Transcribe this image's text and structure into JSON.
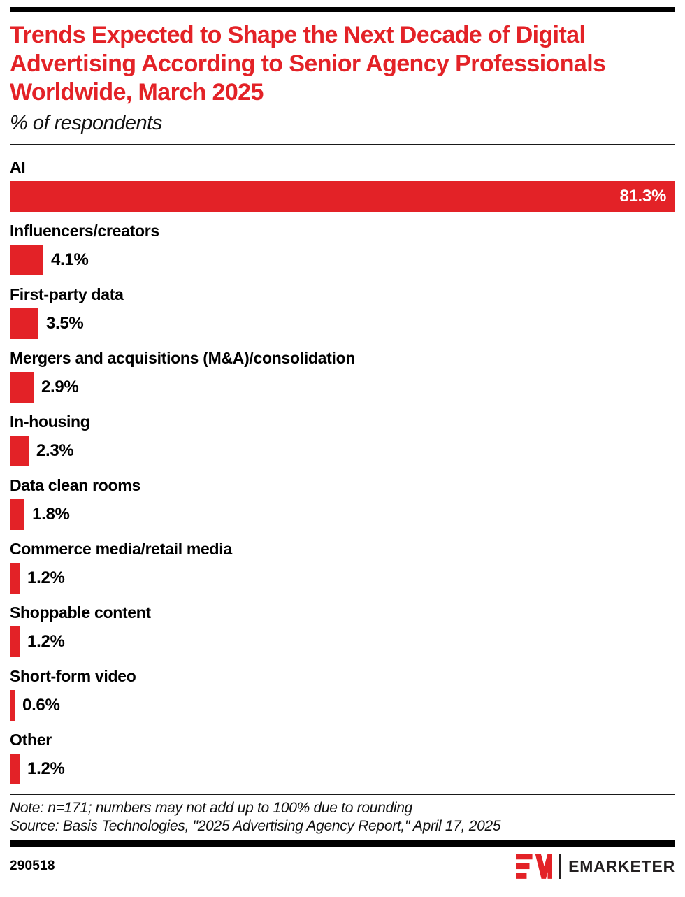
{
  "header": {
    "title": "Trends Expected to Shape the Next Decade of Digital Advertising According to Senior Agency Professionals Worldwide, March 2025",
    "subtitle": "% of respondents"
  },
  "chart_data": {
    "type": "bar",
    "orientation": "horizontal",
    "title": "Trends Expected to Shape the Next Decade of Digital Advertising According to Senior Agency Professionals Worldwide, March 2025",
    "subtitle": "% of respondents",
    "unit": "% of respondents",
    "bar_color": "#e32227",
    "xlim": [
      0,
      81.3
    ],
    "grid": false,
    "legend": false,
    "categories": [
      "AI",
      "Influencers/creators",
      "First-party data",
      "Mergers and acquisitions (M&A)/consolidation",
      "In-housing",
      "Data clean rooms",
      "Commerce media/retail media",
      "Shoppable content",
      "Short-form video",
      "Other"
    ],
    "values": [
      81.3,
      4.1,
      3.5,
      2.9,
      2.3,
      1.8,
      1.2,
      1.2,
      0.6,
      1.2
    ],
    "value_labels": [
      "81.3%",
      "4.1%",
      "3.5%",
      "2.9%",
      "2.3%",
      "1.8%",
      "1.2%",
      "1.2%",
      "0.6%",
      "1.2%"
    ]
  },
  "footer": {
    "note": "Note: n=171; numbers may not add up to 100% due to rounding",
    "source": "Source: Basis Technologies, \"2025 Advertising Agency Report,\" April 17, 2025",
    "chart_id": "290518",
    "brand_name": "EMARKETER"
  },
  "colors": {
    "accent_red": "#e32227",
    "text_black": "#111111",
    "rule_black": "#000000"
  }
}
